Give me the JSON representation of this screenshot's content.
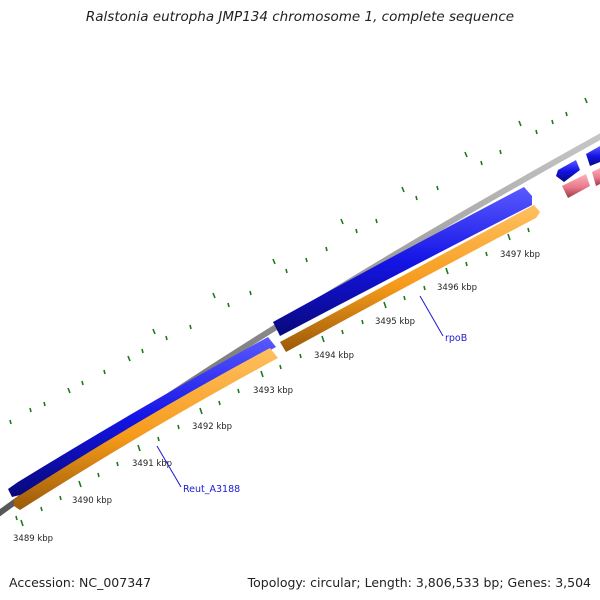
{
  "title": "Ralstonia eutropha JMP134 chromosome 1, complete sequence",
  "footer": {
    "accession": "Accession: NC_007347",
    "summary": "Topology: circular; Length: 3,806,533 bp; Genes: 3,504"
  },
  "scale_labels": [
    "3489 kbp",
    "3490 kbp",
    "3491 kbp",
    "3492 kbp",
    "3493 kbp",
    "3494 kbp",
    "3495 kbp",
    "3496 kbp",
    "3497 kbp"
  ],
  "gene_labels": [
    "Reut_A3188",
    "rpoB"
  ],
  "colors": {
    "backbone": "#8a8a8a",
    "forward_cds": "#1414e6",
    "reverse_cds": "#f59a1a",
    "other_feature": "#e87a8a",
    "ticks": "#1f7a1f",
    "label_line": "#1a1ad0"
  }
}
